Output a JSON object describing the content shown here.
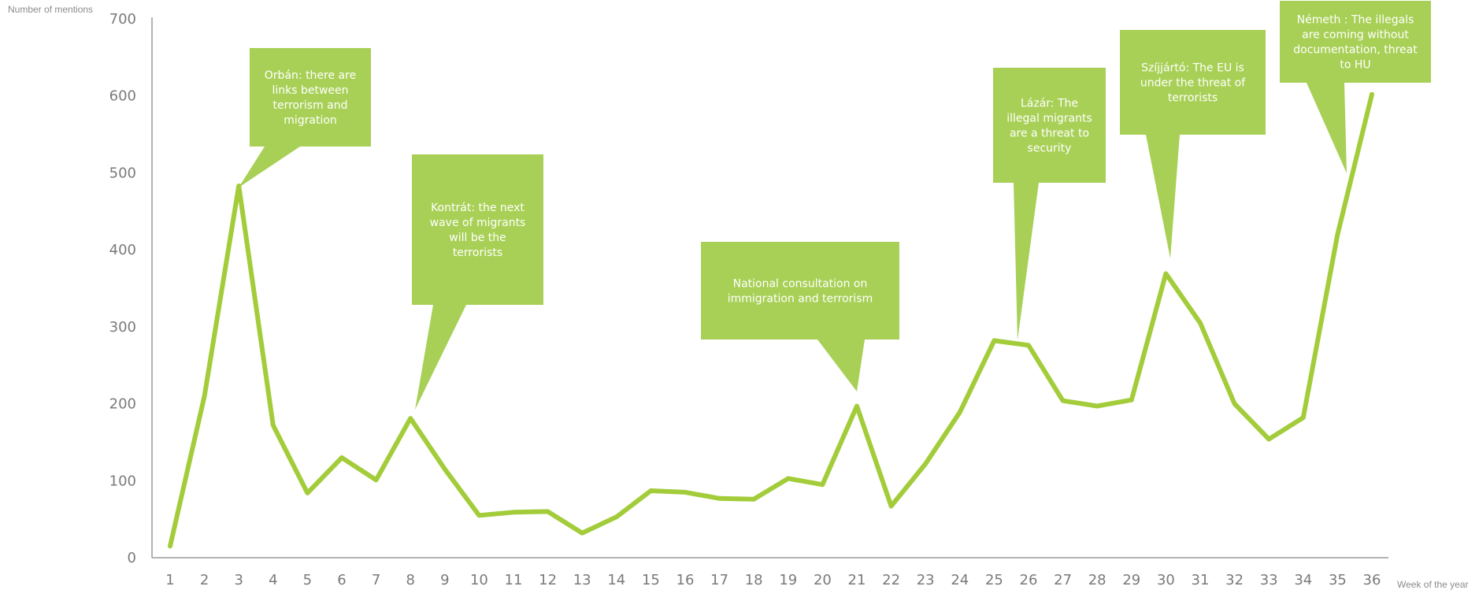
{
  "chart_data": {
    "type": "line",
    "ylabel": "Number of mentions",
    "xlabel": "Week of the year",
    "ylim": [
      0,
      700
    ],
    "yticks": [
      0,
      100,
      200,
      300,
      400,
      500,
      600,
      700
    ],
    "grid": false,
    "x": [
      1,
      2,
      3,
      4,
      5,
      6,
      7,
      8,
      9,
      10,
      11,
      12,
      13,
      14,
      15,
      16,
      17,
      18,
      19,
      20,
      21,
      22,
      23,
      24,
      25,
      26,
      27,
      28,
      29,
      30,
      31,
      32,
      33,
      34,
      35,
      36
    ],
    "series": [
      {
        "values": [
          15,
          210,
          483,
          172,
          84,
          130,
          101,
          181,
          115,
          55,
          59,
          60,
          32,
          53,
          87,
          85,
          77,
          76,
          103,
          95,
          197,
          67,
          122,
          189,
          282,
          276,
          204,
          197,
          205,
          369,
          305,
          200,
          154,
          182,
          420,
          602
        ]
      }
    ],
    "line_color": "#a3cc3a",
    "callout_color": "#a8d056",
    "annotations": [
      {
        "text_lines": [
          "Orbán: there are",
          "links between",
          "terrorism and",
          "migration"
        ],
        "week": 3
      },
      {
        "text_lines": [
          "Kontrát: the next",
          "wave of migrants",
          "will be the",
          "terrorists"
        ],
        "week": 8
      },
      {
        "text_lines": [
          "National consultation on",
          "immigration and terrorism"
        ],
        "week": 21
      },
      {
        "text_lines": [
          "Lázár: The",
          "illegal migrants",
          "are a threat to",
          "security"
        ],
        "week": 26
      },
      {
        "text_lines": [
          "Szíjjártó: The EU is",
          "under the threat of",
          "terrorists"
        ],
        "week": 30
      },
      {
        "text_lines": [
          "Németh : The illegals",
          "are coming without",
          "documentation, threat",
          "to HU"
        ],
        "week": 35
      }
    ]
  }
}
